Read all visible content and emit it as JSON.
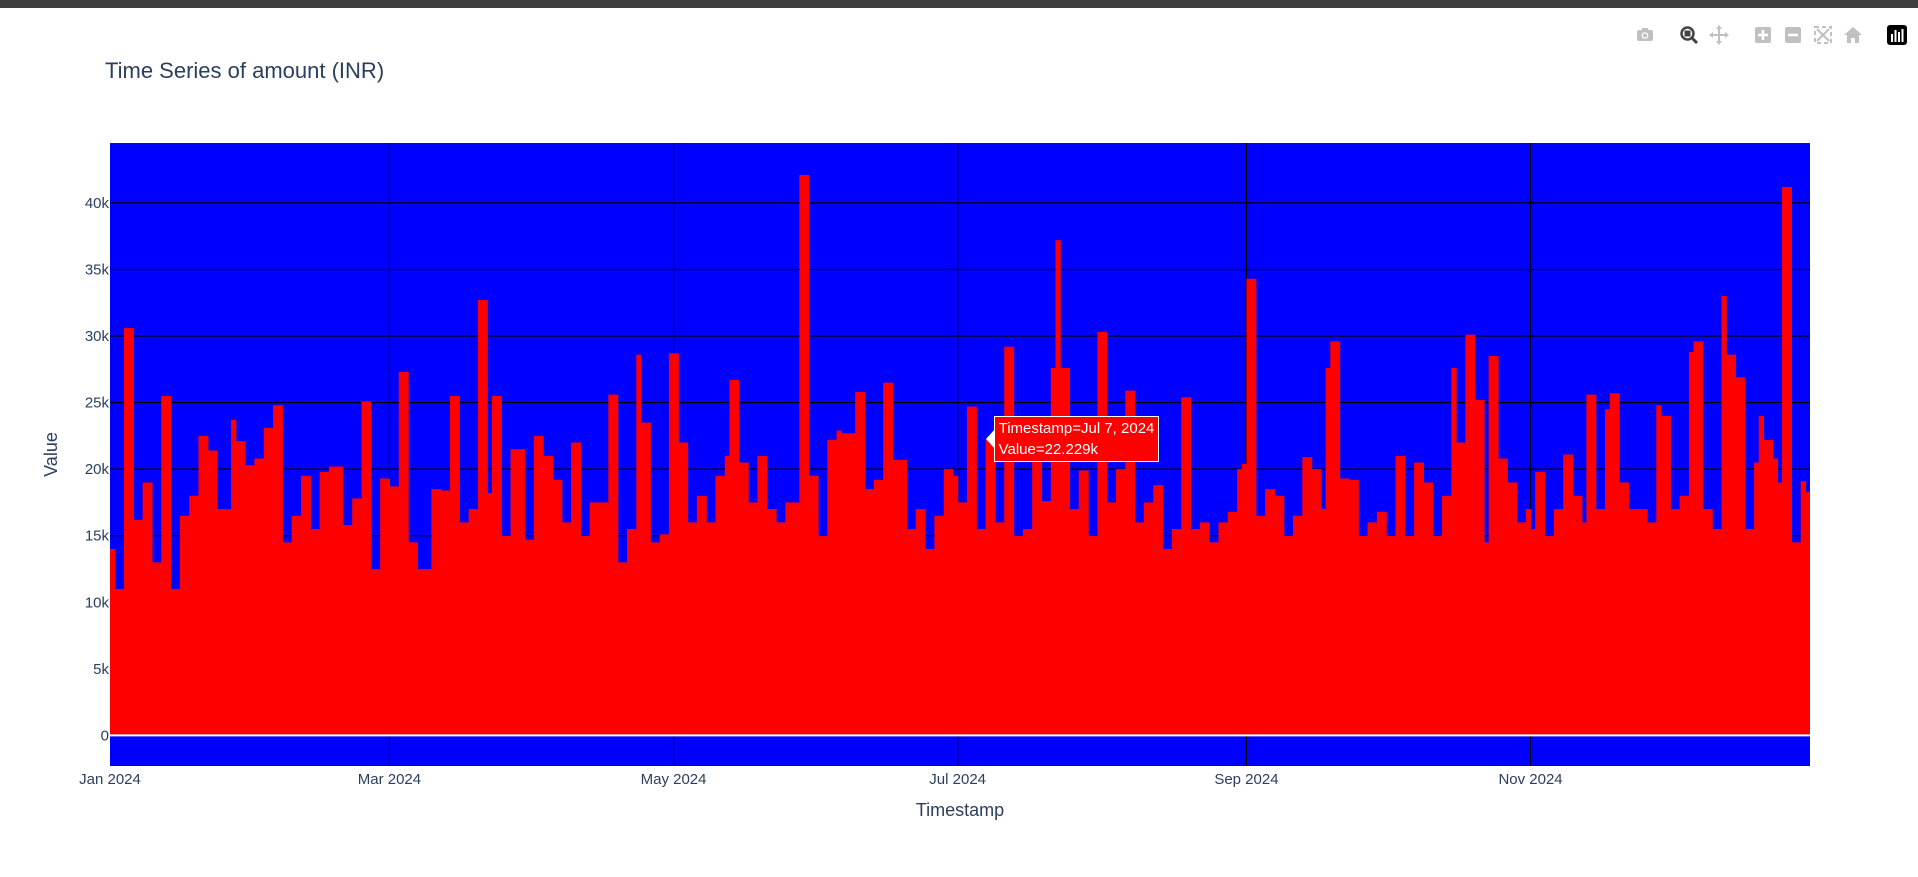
{
  "modebar": {
    "icons": [
      "camera-icon",
      "zoom-icon",
      "pan-icon",
      "zoom-in-icon",
      "zoom-out-icon",
      "autoscale-icon",
      "home-icon",
      "plotly-logo-icon"
    ]
  },
  "colors": {
    "plot_bg": "#0000ff",
    "bars": "#ff0000",
    "grid": "#000000",
    "text": "#2a3f5f",
    "active_icon": "#444444",
    "inactive_icon": "#c0c0c0"
  },
  "chart_data": {
    "type": "bar",
    "title": "Time Series of amount (INR)",
    "xlabel": "Timestamp",
    "ylabel": "Value",
    "x_range": [
      "2024-01-01",
      "2024-12-31"
    ],
    "ylim": [
      -2300,
      44500
    ],
    "x_ticks": [
      {
        "date": "2024-01-01",
        "label": "Jan 2024"
      },
      {
        "date": "2024-03-01",
        "label": "Mar 2024"
      },
      {
        "date": "2024-05-01",
        "label": "May 2024"
      },
      {
        "date": "2024-07-01",
        "label": "Jul 2024"
      },
      {
        "date": "2024-09-01",
        "label": "Sep 2024"
      },
      {
        "date": "2024-11-01",
        "label": "Nov 2024"
      }
    ],
    "y_ticks": [
      {
        "value": 0,
        "label": "0"
      },
      {
        "value": 5000,
        "label": "5k"
      },
      {
        "value": 10000,
        "label": "10k"
      },
      {
        "value": 15000,
        "label": "15k"
      },
      {
        "value": 20000,
        "label": "20k"
      },
      {
        "value": 25000,
        "label": "25k"
      },
      {
        "value": 30000,
        "label": "30k"
      },
      {
        "value": 35000,
        "label": "35k"
      },
      {
        "value": 40000,
        "label": "40k"
      }
    ],
    "series": [
      {
        "daily_peaks": [
          [
            "2024-01-01",
            14000
          ],
          [
            "2024-01-02",
            11000
          ],
          [
            "2024-01-04",
            30600
          ],
          [
            "2024-01-06",
            16200
          ],
          [
            "2024-01-08",
            19000
          ],
          [
            "2024-01-10",
            13000
          ],
          [
            "2024-01-12",
            25500
          ],
          [
            "2024-01-14",
            11000
          ],
          [
            "2024-01-16",
            16500
          ],
          [
            "2024-01-18",
            18000
          ],
          [
            "2024-01-20",
            22500
          ],
          [
            "2024-01-22",
            21400
          ],
          [
            "2024-01-24",
            17000
          ],
          [
            "2024-01-27",
            23700
          ],
          [
            "2024-01-28",
            22100
          ],
          [
            "2024-01-30",
            20300
          ],
          [
            "2024-02-01",
            20800
          ],
          [
            "2024-02-03",
            23100
          ],
          [
            "2024-02-05",
            24800
          ],
          [
            "2024-02-07",
            14500
          ],
          [
            "2024-02-09",
            16500
          ],
          [
            "2024-02-11",
            19500
          ],
          [
            "2024-02-13",
            15500
          ],
          [
            "2024-02-15",
            19800
          ],
          [
            "2024-02-17",
            20200
          ],
          [
            "2024-02-20",
            15800
          ],
          [
            "2024-02-22",
            17800
          ],
          [
            "2024-02-24",
            25100
          ],
          [
            "2024-02-26",
            12500
          ],
          [
            "2024-02-28",
            19300
          ],
          [
            "2024-03-01",
            18700
          ],
          [
            "2024-03-03",
            27300
          ],
          [
            "2024-03-05",
            14500
          ],
          [
            "2024-03-07",
            12500
          ],
          [
            "2024-03-10",
            18500
          ],
          [
            "2024-03-12",
            18400
          ],
          [
            "2024-03-14",
            25500
          ],
          [
            "2024-03-16",
            16000
          ],
          [
            "2024-03-18",
            17000
          ],
          [
            "2024-03-20",
            32700
          ],
          [
            "2024-03-22",
            18200
          ],
          [
            "2024-03-23",
            25500
          ],
          [
            "2024-03-25",
            15000
          ],
          [
            "2024-03-27",
            21500
          ],
          [
            "2024-03-30",
            14700
          ],
          [
            "2024-04-01",
            22500
          ],
          [
            "2024-04-03",
            21000
          ],
          [
            "2024-04-05",
            19200
          ],
          [
            "2024-04-07",
            16000
          ],
          [
            "2024-04-09",
            22000
          ],
          [
            "2024-04-11",
            15000
          ],
          [
            "2024-04-13",
            17500
          ],
          [
            "2024-04-15",
            17500
          ],
          [
            "2024-04-17",
            25600
          ],
          [
            "2024-04-19",
            13000
          ],
          [
            "2024-04-21",
            15500
          ],
          [
            "2024-04-23",
            28600
          ],
          [
            "2024-04-24",
            23500
          ],
          [
            "2024-04-26",
            14500
          ],
          [
            "2024-04-28",
            15100
          ],
          [
            "2024-04-30",
            28700
          ],
          [
            "2024-05-02",
            22000
          ],
          [
            "2024-05-04",
            16000
          ],
          [
            "2024-05-06",
            18000
          ],
          [
            "2024-05-08",
            16000
          ],
          [
            "2024-05-10",
            19500
          ],
          [
            "2024-05-12",
            21000
          ],
          [
            "2024-05-13",
            26700
          ],
          [
            "2024-05-15",
            20500
          ],
          [
            "2024-05-17",
            17500
          ],
          [
            "2024-05-19",
            21000
          ],
          [
            "2024-05-21",
            17000
          ],
          [
            "2024-05-23",
            16000
          ],
          [
            "2024-05-25",
            17500
          ],
          [
            "2024-05-28",
            42100
          ],
          [
            "2024-05-30",
            19500
          ],
          [
            "2024-06-01",
            15000
          ],
          [
            "2024-06-03",
            22200
          ],
          [
            "2024-06-05",
            22900
          ],
          [
            "2024-06-06",
            22700
          ],
          [
            "2024-06-09",
            25800
          ],
          [
            "2024-06-11",
            18500
          ],
          [
            "2024-06-13",
            19200
          ],
          [
            "2024-06-15",
            26500
          ],
          [
            "2024-06-17",
            20700
          ],
          [
            "2024-06-20",
            15500
          ],
          [
            "2024-06-22",
            17000
          ],
          [
            "2024-06-24",
            14000
          ],
          [
            "2024-06-26",
            16500
          ],
          [
            "2024-06-28",
            20000
          ],
          [
            "2024-06-30",
            19500
          ],
          [
            "2024-07-01",
            17500
          ],
          [
            "2024-07-03",
            24700
          ],
          [
            "2024-07-05",
            15500
          ],
          [
            "2024-07-07",
            22229
          ],
          [
            "2024-07-09",
            16000
          ],
          [
            "2024-07-11",
            29200
          ],
          [
            "2024-07-13",
            15000
          ],
          [
            "2024-07-15",
            15500
          ],
          [
            "2024-07-17",
            21700
          ],
          [
            "2024-07-19",
            17600
          ],
          [
            "2024-07-21",
            27600
          ],
          [
            "2024-07-22",
            37200
          ],
          [
            "2024-07-23",
            27600
          ],
          [
            "2024-07-25",
            17000
          ],
          [
            "2024-07-27",
            19900
          ],
          [
            "2024-07-29",
            15000
          ],
          [
            "2024-07-31",
            30300
          ],
          [
            "2024-08-02",
            17500
          ],
          [
            "2024-08-04",
            20000
          ],
          [
            "2024-08-06",
            25900
          ],
          [
            "2024-08-08",
            16000
          ],
          [
            "2024-08-10",
            17500
          ],
          [
            "2024-08-12",
            18800
          ],
          [
            "2024-08-14",
            14000
          ],
          [
            "2024-08-16",
            15500
          ],
          [
            "2024-08-18",
            25400
          ],
          [
            "2024-08-20",
            15500
          ],
          [
            "2024-08-22",
            16000
          ],
          [
            "2024-08-24",
            14500
          ],
          [
            "2024-08-26",
            16000
          ],
          [
            "2024-08-28",
            16800
          ],
          [
            "2024-08-30",
            20000
          ],
          [
            "2024-08-31",
            20400
          ],
          [
            "2024-09-01",
            34300
          ],
          [
            "2024-09-03",
            16500
          ],
          [
            "2024-09-05",
            18500
          ],
          [
            "2024-09-07",
            18000
          ],
          [
            "2024-09-09",
            15000
          ],
          [
            "2024-09-11",
            16500
          ],
          [
            "2024-09-13",
            20900
          ],
          [
            "2024-09-15",
            20000
          ],
          [
            "2024-09-17",
            17000
          ],
          [
            "2024-09-18",
            27600
          ],
          [
            "2024-09-19",
            29600
          ],
          [
            "2024-09-21",
            19300
          ],
          [
            "2024-09-23",
            19200
          ],
          [
            "2024-09-25",
            15000
          ],
          [
            "2024-09-27",
            16000
          ],
          [
            "2024-09-29",
            16800
          ],
          [
            "2024-10-01",
            15000
          ],
          [
            "2024-10-03",
            21000
          ],
          [
            "2024-10-05",
            15000
          ],
          [
            "2024-10-07",
            20500
          ],
          [
            "2024-10-09",
            19000
          ],
          [
            "2024-10-11",
            15000
          ],
          [
            "2024-10-13",
            18000
          ],
          [
            "2024-10-15",
            27600
          ],
          [
            "2024-10-16",
            22000
          ],
          [
            "2024-10-18",
            30100
          ],
          [
            "2024-10-20",
            25200
          ],
          [
            "2024-10-22",
            14500
          ],
          [
            "2024-10-23",
            28500
          ],
          [
            "2024-10-25",
            20800
          ],
          [
            "2024-10-27",
            19000
          ],
          [
            "2024-10-29",
            16000
          ],
          [
            "2024-10-31",
            17000
          ],
          [
            "2024-11-01",
            15500
          ],
          [
            "2024-11-02",
            19800
          ],
          [
            "2024-11-04",
            15000
          ],
          [
            "2024-11-06",
            17000
          ],
          [
            "2024-11-08",
            21100
          ],
          [
            "2024-11-10",
            18000
          ],
          [
            "2024-11-12",
            16000
          ],
          [
            "2024-11-13",
            25600
          ],
          [
            "2024-11-15",
            17000
          ],
          [
            "2024-11-17",
            24500
          ],
          [
            "2024-11-18",
            25700
          ],
          [
            "2024-11-20",
            19000
          ],
          [
            "2024-11-22",
            17000
          ],
          [
            "2024-11-24",
            17000
          ],
          [
            "2024-11-26",
            16000
          ],
          [
            "2024-11-28",
            24800
          ],
          [
            "2024-11-29",
            24000
          ],
          [
            "2024-12-01",
            17000
          ],
          [
            "2024-12-03",
            18000
          ],
          [
            "2024-12-05",
            28800
          ],
          [
            "2024-12-06",
            29600
          ],
          [
            "2024-12-08",
            17000
          ],
          [
            "2024-12-10",
            15500
          ],
          [
            "2024-12-12",
            33000
          ],
          [
            "2024-12-13",
            28600
          ],
          [
            "2024-12-15",
            26900
          ],
          [
            "2024-12-17",
            15500
          ],
          [
            "2024-12-19",
            20500
          ],
          [
            "2024-12-20",
            24000
          ],
          [
            "2024-12-21",
            22200
          ],
          [
            "2024-12-23",
            20800
          ],
          [
            "2024-12-24",
            19000
          ],
          [
            "2024-12-25",
            41200
          ],
          [
            "2024-12-27",
            14500
          ],
          [
            "2024-12-29",
            19100
          ],
          [
            "2024-12-30",
            18300
          ],
          [
            "2024-12-31",
            19400
          ]
        ]
      }
    ],
    "hover": {
      "date": "2024-07-07",
      "value": 22229,
      "lines": [
        "Timestamp=Jul 7, 2024",
        "Value=22.229k"
      ]
    }
  }
}
